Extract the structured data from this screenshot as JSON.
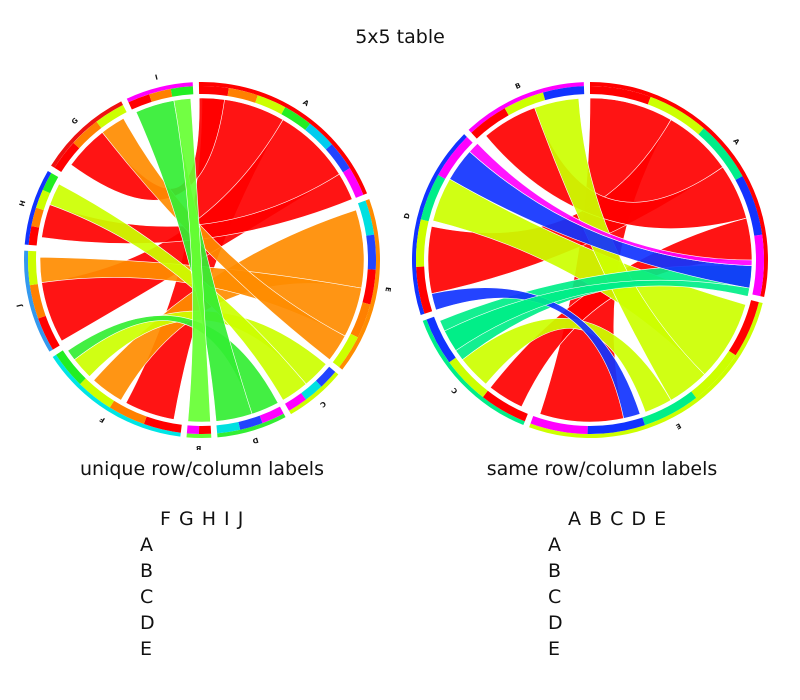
{
  "title": "5x5 table",
  "left": {
    "caption": "unique row/column labels",
    "col_headers": "F G H I J",
    "row_labels": [
      "A",
      "B",
      "C",
      "D",
      "E"
    ],
    "segments": [
      {
        "label": "A",
        "color": "#ff0000",
        "start": -1,
        "end": 68,
        "ring": [
          "#ff0000",
          "#ff8000",
          "#ccff00",
          "#22ee22",
          "#00ccee",
          "#2244ff",
          "#ff00ff"
        ]
      },
      {
        "label": "E",
        "color": "#ff8c00",
        "start": 70,
        "end": 128,
        "ring": [
          "#00e0e0",
          "#2244ff",
          "#ff0000",
          "#ff8000",
          "#ccff00"
        ]
      },
      {
        "label": "C",
        "color": "#ccff00",
        "start": 130,
        "end": 150,
        "ring": [
          "#2244ff",
          "#00e0e0",
          "#ff00ff"
        ]
      },
      {
        "label": "D",
        "color": "#33ee33",
        "start": 152,
        "end": 175,
        "ring": [
          "#ff00ff",
          "#2244ff",
          "#00e0e0"
        ]
      },
      {
        "label": "B",
        "color": "#66ff33",
        "start": 177,
        "end": 185,
        "ring": [
          "#ff0000",
          "#ff00ff"
        ]
      },
      {
        "label": "F",
        "color": "#00e5e5",
        "start": 187,
        "end": 237,
        "ring": [
          "#ff0000",
          "#ff8000",
          "#ccff00",
          "#22ee22"
        ]
      },
      {
        "label": "J",
        "color": "#3399ee",
        "start": 239,
        "end": 273,
        "ring": [
          "#ff0000",
          "#ff8000",
          "#ccff00"
        ]
      },
      {
        "label": "H",
        "color": "#1133ff",
        "start": 275,
        "end": 300,
        "ring": [
          "#ff0000",
          "#ff8000",
          "#ccff00",
          "#22ee22"
        ]
      },
      {
        "label": "G",
        "color": "#ee1111",
        "start": 302,
        "end": 333,
        "ring": [
          "#ff0000",
          "#ff8000",
          "#ccff00"
        ]
      },
      {
        "label": "I",
        "color": "#ff00ff",
        "start": 335,
        "end": 357,
        "ring": [
          "#ff0000",
          "#ff8000",
          "#22ee22"
        ]
      }
    ],
    "ribbons": [
      {
        "color": "#ff0000",
        "a": [
          0,
          30
        ],
        "b": [
          190,
          208
        ]
      },
      {
        "color": "#ff0000",
        "a": [
          30,
          58
        ],
        "b": [
          240,
          262
        ]
      },
      {
        "color": "#ff0000",
        "a": [
          58,
          68
        ],
        "b": [
          278,
          290
        ]
      },
      {
        "color": "#ff0000",
        "a": [
          -1,
          8
        ],
        "b": [
          306,
          322
        ]
      },
      {
        "color": "#ff8c00",
        "a": [
          72,
          100
        ],
        "b": [
          210,
          222
        ]
      },
      {
        "color": "#ff8c00",
        "a": [
          100,
          118
        ],
        "b": [
          262,
          271
        ]
      },
      {
        "color": "#ff8c00",
        "a": [
          118,
          128
        ],
        "b": [
          322,
          331
        ]
      },
      {
        "color": "#ccff00",
        "a": [
          130,
          140
        ],
        "b": [
          224,
          232
        ]
      },
      {
        "color": "#ccff00",
        "a": [
          140,
          150
        ],
        "b": [
          290,
          298
        ]
      },
      {
        "color": "#33ee33",
        "a": [
          152,
          162
        ],
        "b": [
          232,
          236
        ]
      },
      {
        "color": "#33ee33",
        "a": [
          162,
          175
        ],
        "b": [
          336,
          350
        ]
      },
      {
        "color": "#66ff33",
        "a": [
          177,
          185
        ],
        "b": [
          350,
          356
        ]
      }
    ]
  },
  "right": {
    "caption": "same row/column labels",
    "col_headers": "A B C D E",
    "row_labels": [
      "A",
      "B",
      "C",
      "D",
      "E"
    ],
    "segments": [
      {
        "label": "A",
        "color": "#ff0000",
        "start": 0,
        "end": 102,
        "ring": [
          "#ff0000",
          "#ccff00",
          "#00ee88",
          "#1133ff",
          "#ff00ff"
        ]
      },
      {
        "label": "E",
        "color": "#ccff00",
        "start": 104,
        "end": 200,
        "ring": [
          "#ff0000",
          "#ccff00",
          "#00ee88",
          "#1133ff",
          "#ff00ff"
        ]
      },
      {
        "label": "C",
        "color": "#00ee88",
        "start": 202,
        "end": 250,
        "ring": [
          "#ff0000",
          "#ccff00",
          "#1133ff"
        ]
      },
      {
        "label": "D",
        "color": "#1133ff",
        "start": 252,
        "end": 315,
        "ring": [
          "#ff0000",
          "#ccff00",
          "#00ee88",
          "#ff00ff"
        ]
      },
      {
        "label": "B",
        "color": "#ff00ff",
        "start": 317,
        "end": 358,
        "ring": [
          "#ff0000",
          "#ccff00",
          "#1133ff"
        ]
      }
    ],
    "ribbons": [
      {
        "color": "#ff0000",
        "a": [
          0,
          30
        ],
        "b": [
          168,
          198
        ]
      },
      {
        "color": "#ff0000",
        "a": [
          30,
          55
        ],
        "b": [
          258,
          282
        ]
      },
      {
        "color": "#ff0000",
        "a": [
          55,
          75
        ],
        "b": [
          320,
          340
        ]
      },
      {
        "color": "#ff0000",
        "a": [
          75,
          90
        ],
        "b": [
          205,
          218
        ]
      },
      {
        "color": "#ccff00",
        "a": [
          106,
          135
        ],
        "b": [
          284,
          300
        ]
      },
      {
        "color": "#ccff00",
        "a": [
          135,
          150
        ],
        "b": [
          340,
          356
        ]
      },
      {
        "color": "#ccff00",
        "a": [
          150,
          160
        ],
        "b": [
          220,
          232
        ]
      },
      {
        "color": "#00ee88",
        "a": [
          232,
          248
        ],
        "b": [
          92,
          100
        ]
      },
      {
        "color": "#1133ff",
        "a": [
          300,
          312
        ],
        "b": [
          92,
          100
        ]
      },
      {
        "color": "#1133ff",
        "a": [
          252,
          258
        ],
        "b": [
          162,
          168
        ]
      },
      {
        "color": "#ff00ff",
        "a": [
          90,
          92
        ],
        "b": [
          312,
          316
        ]
      },
      {
        "color": "#00ee88",
        "a": [
          100,
          103
        ],
        "b": [
          236,
          244
        ]
      }
    ]
  }
}
